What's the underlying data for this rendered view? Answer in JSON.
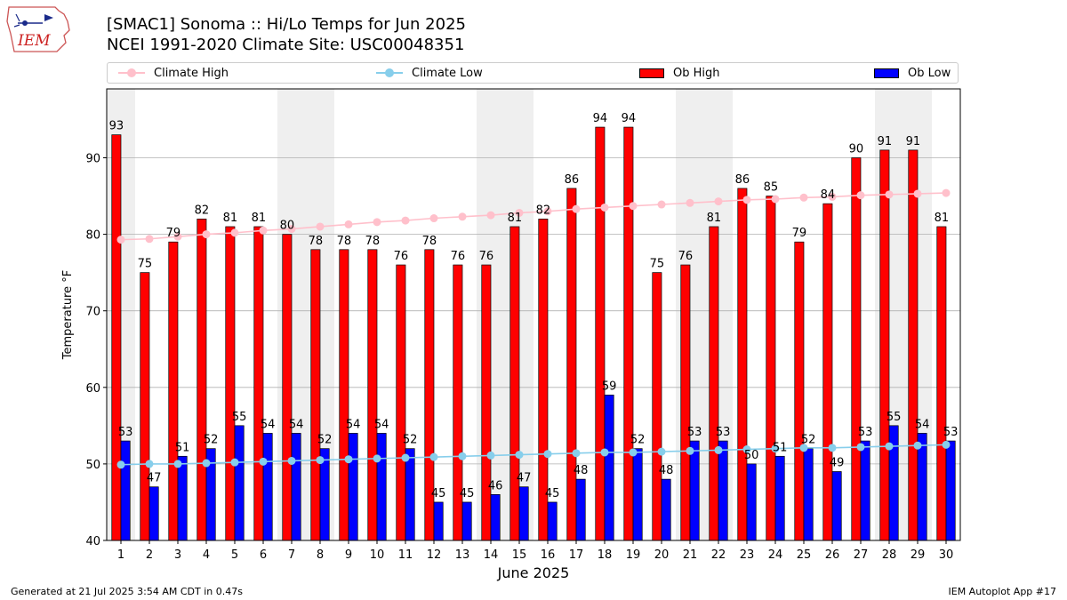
{
  "header": {
    "logo_text": "IEM",
    "title_line1": "[SMAC1] Sonoma :: Hi/Lo Temps for Jun 2025",
    "title_line2": "NCEI 1991-2020 Climate Site: USC00048351"
  },
  "legend": [
    {
      "label": "Climate High",
      "symbol": "line-marker",
      "color": "#ffc0cb"
    },
    {
      "label": "Climate Low",
      "symbol": "line-marker",
      "color": "#87ceeb"
    },
    {
      "label": "Ob High",
      "symbol": "box",
      "color": "#ff0000"
    },
    {
      "label": "Ob Low",
      "symbol": "box",
      "color": "#0000ff"
    }
  ],
  "footer": {
    "generated": "Generated at 21 Jul 2025 3:54 AM CDT in 0.47s",
    "app": "IEM Autoplot App #17"
  },
  "colors": {
    "ob_high": "#ff0000",
    "ob_low": "#0000ff",
    "climate_high": "#ffc0cb",
    "climate_low": "#87ceeb",
    "week_band": "#efefef",
    "grid": "#b0b0b0"
  },
  "chart_data": {
    "type": "bar",
    "title": "[SMAC1] Sonoma :: Hi/Lo Temps for Jun 2025",
    "subtitle": "NCEI 1991-2020 Climate Site: USC00048351",
    "xlabel": "June 2025",
    "ylabel": "Temperature °F",
    "ylim": [
      40,
      99
    ],
    "yticks": [
      40,
      50,
      60,
      70,
      80,
      90
    ],
    "categories": [
      "1",
      "2",
      "3",
      "4",
      "5",
      "6",
      "7",
      "8",
      "9",
      "10",
      "11",
      "12",
      "13",
      "14",
      "15",
      "16",
      "17",
      "18",
      "19",
      "20",
      "21",
      "22",
      "23",
      "24",
      "25",
      "26",
      "27",
      "28",
      "29",
      "30"
    ],
    "grid": "horizontal",
    "legend_position": "top",
    "shaded_day_ranges": [
      [
        1,
        1
      ],
      [
        7,
        8
      ],
      [
        14,
        15
      ],
      [
        21,
        22
      ],
      [
        28,
        29
      ]
    ],
    "series": [
      {
        "name": "Ob High",
        "type": "bar",
        "values": [
          93,
          75,
          79,
          82,
          81,
          81,
          80,
          78,
          78,
          78,
          76,
          78,
          76,
          76,
          81,
          82,
          86,
          94,
          94,
          75,
          76,
          81,
          86,
          85,
          79,
          84,
          90,
          91,
          91,
          81
        ]
      },
      {
        "name": "Ob Low",
        "type": "bar",
        "values": [
          53,
          47,
          51,
          52,
          55,
          54,
          54,
          52,
          54,
          54,
          52,
          45,
          45,
          46,
          47,
          45,
          48,
          59,
          52,
          48,
          53,
          53,
          50,
          51,
          52,
          49,
          53,
          55,
          54,
          53
        ]
      },
      {
        "name": "Climate High",
        "type": "line",
        "values": [
          79.3,
          79.4,
          79.7,
          80.0,
          80.2,
          80.5,
          80.7,
          81.0,
          81.3,
          81.6,
          81.8,
          82.1,
          82.3,
          82.5,
          82.8,
          83.0,
          83.3,
          83.5,
          83.7,
          83.9,
          84.1,
          84.3,
          84.5,
          84.6,
          84.8,
          84.9,
          85.1,
          85.2,
          85.3,
          85.4
        ]
      },
      {
        "name": "Climate Low",
        "type": "line",
        "values": [
          49.9,
          50.0,
          50.0,
          50.1,
          50.2,
          50.3,
          50.4,
          50.5,
          50.6,
          50.7,
          50.8,
          50.9,
          51.0,
          51.1,
          51.2,
          51.3,
          51.4,
          51.5,
          51.5,
          51.6,
          51.7,
          51.8,
          51.9,
          52.0,
          52.1,
          52.1,
          52.2,
          52.3,
          52.4,
          52.5
        ]
      }
    ]
  }
}
